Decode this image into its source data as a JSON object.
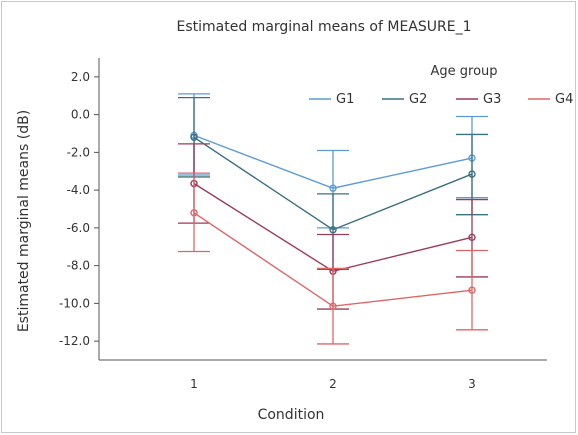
{
  "chart_data": {
    "type": "line",
    "title": "Estimated marginal means of MEASURE_1",
    "xlabel": "Condition",
    "ylabel": "Estimated marginal means (dB)",
    "categories": [
      "1",
      "2",
      "3"
    ],
    "ylim": [
      -13.0,
      3.0
    ],
    "yticks": [
      2.0,
      0.0,
      -2.0,
      -4.0,
      -6.0,
      -8.0,
      -10.0,
      -12.0
    ],
    "ytick_labels": [
      "2.0",
      "0.0",
      "-2.0",
      "-4.0",
      "-6.0",
      "-8.0",
      "-10.0",
      "-12.0"
    ],
    "grid": false,
    "legend": {
      "title": "Age group",
      "placement": "top-right"
    },
    "series": [
      {
        "name": "G1",
        "color": "#5b9bd5",
        "values": [
          -1.1,
          -3.9,
          -2.3
        ],
        "error_low": [
          -3.2,
          -6.0,
          -4.4
        ],
        "error_high": [
          1.1,
          -1.9,
          -0.1
        ]
      },
      {
        "name": "G2",
        "color": "#3b7080",
        "values": [
          -1.2,
          -6.1,
          -3.15
        ],
        "error_low": [
          -3.3,
          -8.2,
          -5.3
        ],
        "error_high": [
          0.9,
          -4.2,
          -1.05
        ]
      },
      {
        "name": "G3",
        "color": "#9c3a5a",
        "values": [
          -3.65,
          -8.3,
          -6.5
        ],
        "error_low": [
          -5.75,
          -10.3,
          -8.6
        ],
        "error_high": [
          -1.55,
          -6.35,
          -4.5
        ]
      },
      {
        "name": "G4",
        "color": "#e06666",
        "values": [
          -5.2,
          -10.15,
          -9.3
        ],
        "error_low": [
          -7.25,
          -12.15,
          -11.4
        ],
        "error_high": [
          -3.1,
          -8.15,
          -7.2
        ]
      }
    ]
  }
}
